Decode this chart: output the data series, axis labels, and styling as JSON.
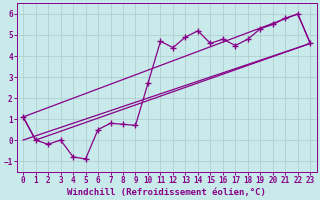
{
  "xlabel": "Windchill (Refroidissement éolien,°C)",
  "bg_color": "#c8eaea",
  "line_color": "#880088",
  "grid_color": "#b0c8c8",
  "xlim": [
    -0.5,
    23.5
  ],
  "ylim": [
    -1.5,
    6.5
  ],
  "yticks": [
    -1,
    0,
    1,
    2,
    3,
    4,
    5,
    6
  ],
  "xticks": [
    0,
    1,
    2,
    3,
    4,
    5,
    6,
    7,
    8,
    9,
    10,
    11,
    12,
    13,
    14,
    15,
    16,
    17,
    18,
    19,
    20,
    21,
    22,
    23
  ],
  "data_x": [
    0,
    1,
    2,
    3,
    4,
    5,
    6,
    7,
    8,
    9,
    10,
    11,
    12,
    13,
    14,
    15,
    16,
    17,
    18,
    19,
    20,
    21,
    22,
    23
  ],
  "data_y": [
    1.1,
    0.0,
    -0.2,
    0.0,
    -0.8,
    -0.9,
    0.5,
    0.8,
    0.75,
    0.7,
    2.7,
    4.7,
    4.4,
    4.9,
    5.2,
    4.6,
    4.8,
    4.5,
    4.8,
    5.3,
    5.5,
    5.8,
    6.0,
    4.6
  ],
  "trend_x": [
    0,
    23
  ],
  "trend_y": [
    0.0,
    4.6
  ],
  "env_x": [
    0,
    22,
    23,
    1,
    0
  ],
  "env_y": [
    1.1,
    6.0,
    4.6,
    0.0,
    1.1
  ],
  "marker": "P",
  "marker_size": 3,
  "line_width": 0.9,
  "xlabel_fontsize": 6.5,
  "tick_fontsize": 5.5
}
